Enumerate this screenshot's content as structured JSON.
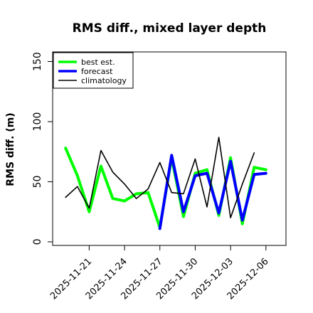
{
  "chart_data": {
    "type": "line",
    "title": "RMS diff., mixed layer depth",
    "ylabel": "RMS diff. (m)",
    "xlabel": "",
    "ylim": [
      -3,
      158
    ],
    "yticks": [
      0,
      50,
      100,
      150
    ],
    "xticks": [
      {
        "label": "2025-11-21",
        "x": 2,
        "color": "#000000"
      },
      {
        "label": "2025-11-24",
        "x": 5,
        "color": "#000000"
      },
      {
        "label": "2025-11-27",
        "x": 8,
        "color": "#228b22"
      },
      {
        "label": "2025-11-30",
        "x": 11,
        "color": "#000000"
      },
      {
        "label": "2025-12-03",
        "x": 14,
        "color": "#000000"
      },
      {
        "label": "2025-12-06",
        "x": 17,
        "color": "#000000"
      }
    ],
    "xlim": [
      -1.1,
      18.7
    ],
    "x": [
      0,
      1,
      2,
      3,
      4,
      5,
      6,
      7,
      8,
      9,
      10,
      11,
      12,
      13,
      14,
      15,
      16,
      17
    ],
    "legend_position": "top-left",
    "grid": false,
    "series": [
      {
        "name": "best est.",
        "color": "#00ff00",
        "width": 4,
        "values": [
          null,
          null,
          null,
          null,
          null,
          null,
          null,
          41,
          12,
          70,
          21,
          57,
          60,
          22,
          70,
          15,
          62,
          60
        ],
        "pre_values": [
          [
            0,
            78
          ],
          [
            1,
            55
          ],
          [
            2,
            25
          ],
          [
            3,
            63
          ],
          [
            4,
            36
          ],
          [
            5,
            34
          ],
          [
            6,
            40
          ]
        ]
      },
      {
        "name": "forecast",
        "color": "#0000ff",
        "width": 4,
        "values": [
          null,
          null,
          null,
          null,
          null,
          null,
          null,
          null,
          11,
          72,
          25,
          55,
          57,
          24,
          67,
          18,
          56,
          57
        ]
      },
      {
        "name": "climatology",
        "color": "#000000",
        "width": 1.6,
        "values": [
          37,
          46,
          28,
          76,
          58,
          48,
          36,
          44,
          66,
          41,
          40,
          69,
          29,
          87,
          20,
          48,
          74,
          null
        ]
      }
    ]
  }
}
